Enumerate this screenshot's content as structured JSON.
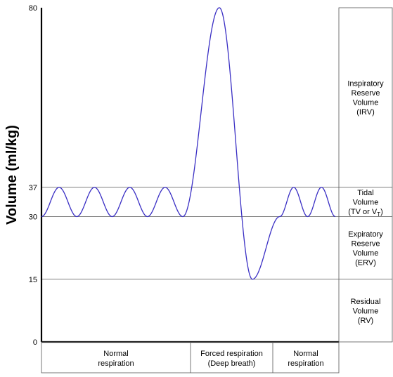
{
  "chart_data": {
    "type": "line",
    "title": "",
    "xlabel": "",
    "ylabel": "Volume (ml/kg)",
    "ylim": [
      0,
      80
    ],
    "yticks": [
      "0",
      "15",
      "30",
      "37",
      "80"
    ],
    "reference_lines": [
      15,
      30,
      37
    ],
    "series": [
      {
        "values_description_free": true,
        "color": "#3a2fc4",
        "segments": [
          {
            "kind": "normal",
            "cycles": 4,
            "min": 30,
            "max": 37
          },
          {
            "kind": "forced",
            "peak": 80,
            "trough": 15,
            "end": 30
          },
          {
            "kind": "normal",
            "cycles": 2,
            "min": 30,
            "max": 37
          }
        ]
      }
    ],
    "zones": [
      {
        "id": "irv",
        "lines": [
          "Inspiratory",
          "Reserve",
          "Volume",
          "(IRV)"
        ],
        "range": [
          37,
          80
        ]
      },
      {
        "id": "tv",
        "lines": [
          "Tidal",
          "Volume"
        ],
        "abbr_prefix": "(TV or V",
        "abbr_sub": "T",
        "abbr_suffix": ")",
        "range": [
          30,
          37
        ]
      },
      {
        "id": "erv",
        "lines": [
          "Expiratory",
          "Reserve",
          "Volume",
          "(ERV)"
        ],
        "range": [
          15,
          30
        ]
      },
      {
        "id": "rv",
        "lines": [
          "Residual",
          "Volume",
          "(RV)"
        ],
        "range": [
          0,
          15
        ]
      }
    ],
    "phases": [
      {
        "id": "normal-1",
        "lines": [
          "Normal",
          "respiration"
        ]
      },
      {
        "id": "forced",
        "lines": [
          "Forced respiration",
          "(Deep breath)"
        ]
      },
      {
        "id": "normal-2",
        "lines": [
          "Normal",
          "respiration"
        ]
      }
    ]
  }
}
